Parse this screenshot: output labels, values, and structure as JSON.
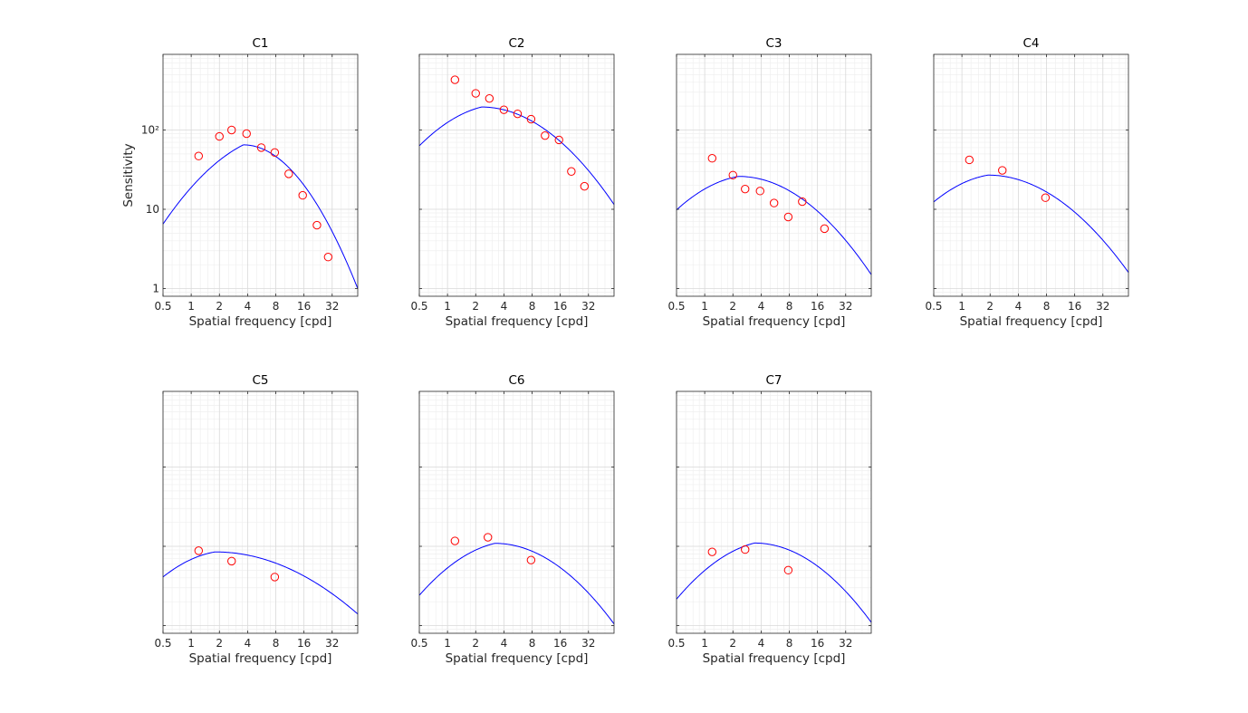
{
  "figure": {
    "xlabel": "Spatial frequency [cpd]",
    "ylabel": "Sensitivity",
    "colors": {
      "fit": "#0000ff",
      "data": "#ff0000",
      "grid": "#d9d9d9",
      "axis": "#262626"
    }
  },
  "chart_data": [
    {
      "type": "scatter",
      "title": "C1",
      "xscale": "log2",
      "yscale": "log10",
      "xlim": [
        0.5,
        60
      ],
      "ylim": [
        0.8,
        900
      ],
      "xticks": [
        0.5,
        1,
        2,
        4,
        8,
        16,
        32
      ],
      "xtick_labels": [
        "0.5",
        "1",
        "2",
        "4",
        "8",
        "16",
        "32"
      ],
      "yticks": [
        1,
        10,
        100
      ],
      "ytick_labels": [
        "1",
        "10",
        "10²"
      ],
      "xlabel": "Spatial frequency [cpd]",
      "ylabel": "Sensitivity",
      "grid": true,
      "fit": {
        "peak_x": 3.6,
        "peak_y": 65,
        "low_slope": 0.6,
        "drop_at_60": 1.0
      },
      "points": [
        [
          1.2,
          47
        ],
        [
          2,
          83
        ],
        [
          2.7,
          100
        ],
        [
          3.9,
          90
        ],
        [
          5.6,
          60
        ],
        [
          7.8,
          52
        ],
        [
          11,
          28
        ],
        [
          15.5,
          15
        ],
        [
          22,
          6.3
        ],
        [
          29,
          2.5
        ]
      ]
    },
    {
      "type": "scatter",
      "title": "C2",
      "xscale": "log2",
      "yscale": "log10",
      "xlim": [
        0.5,
        60
      ],
      "ylim": [
        0.8,
        900
      ],
      "xticks": [
        0.5,
        1,
        2,
        4,
        8,
        16,
        32
      ],
      "xtick_labels": [
        "0.5",
        "1",
        "2",
        "4",
        "8",
        "16",
        "32"
      ],
      "yticks": [
        1,
        10,
        100
      ],
      "ytick_labels": [
        "",
        "",
        ""
      ],
      "xlabel": "Spatial frequency [cpd]",
      "grid": true,
      "fit": {
        "peak_x": 2.3,
        "peak_y": 195,
        "low_slope": 0.3,
        "drop_at_60": 11.5
      },
      "points": [
        [
          1.2,
          430
        ],
        [
          2,
          290
        ],
        [
          2.8,
          250
        ],
        [
          4,
          180
        ],
        [
          5.6,
          160
        ],
        [
          7.8,
          137
        ],
        [
          11,
          85
        ],
        [
          15.5,
          75
        ],
        [
          21,
          30
        ],
        [
          29,
          19.5
        ]
      ]
    },
    {
      "type": "scatter",
      "title": "C3",
      "xscale": "log2",
      "yscale": "log10",
      "xlim": [
        0.5,
        60
      ],
      "ylim": [
        0.8,
        900
      ],
      "xticks": [
        0.5,
        1,
        2,
        4,
        8,
        16,
        32
      ],
      "xtick_labels": [
        "0.5",
        "1",
        "2",
        "4",
        "8",
        "16",
        "32"
      ],
      "yticks": [
        1,
        10,
        100
      ],
      "ytick_labels": [
        "",
        "",
        ""
      ],
      "xlabel": "Spatial frequency [cpd]",
      "grid": true,
      "fit": {
        "peak_x": 2.3,
        "peak_y": 26,
        "low_slope": 0.2,
        "drop_at_60": 1.5
      },
      "points": [
        [
          1.2,
          44
        ],
        [
          2,
          27
        ],
        [
          2.7,
          18
        ],
        [
          3.9,
          17
        ],
        [
          5.5,
          12
        ],
        [
          7.8,
          8
        ],
        [
          11,
          12.5
        ],
        [
          19,
          5.7
        ]
      ]
    },
    {
      "type": "scatter",
      "title": "C4",
      "xscale": "log2",
      "yscale": "log10",
      "xlim": [
        0.5,
        60
      ],
      "ylim": [
        0.8,
        900
      ],
      "xticks": [
        0.5,
        1,
        2,
        4,
        8,
        16,
        32
      ],
      "xtick_labels": [
        "0.5",
        "1",
        "2",
        "4",
        "8",
        "16",
        "32"
      ],
      "yticks": [
        1,
        10,
        100
      ],
      "ytick_labels": [
        "",
        "",
        ""
      ],
      "xlabel": "Spatial frequency [cpd]",
      "grid": true,
      "fit": {
        "peak_x": 1.9,
        "peak_y": 27,
        "low_slope": 0.2,
        "drop_at_60": 1.6
      },
      "points": [
        [
          1.2,
          42
        ],
        [
          2.7,
          31
        ],
        [
          7.8,
          14
        ]
      ]
    },
    {
      "type": "scatter",
      "title": "C5",
      "xscale": "log2",
      "yscale": "log10",
      "xlim": [
        0.5,
        60
      ],
      "ylim": [
        0.8,
        900
      ],
      "xticks": [
        0.5,
        1,
        2,
        4,
        8,
        16,
        32
      ],
      "xtick_labels": [
        "0.5",
        "1",
        "2",
        "4",
        "8",
        "16",
        "32"
      ],
      "yticks": [
        1,
        10,
        100
      ],
      "ytick_labels": [
        "",
        "",
        ""
      ],
      "xlabel": "Spatial frequency [cpd]",
      "grid": true,
      "fit": {
        "peak_x": 1.8,
        "peak_y": 8.5,
        "low_slope": 0.2,
        "drop_at_60": 1.4
      },
      "points": [
        [
          1.2,
          8.8
        ],
        [
          2.7,
          6.5
        ],
        [
          7.8,
          4.1
        ]
      ]
    },
    {
      "type": "scatter",
      "title": "C6",
      "xscale": "log2",
      "yscale": "log10",
      "xlim": [
        0.5,
        60
      ],
      "ylim": [
        0.8,
        900
      ],
      "xticks": [
        0.5,
        1,
        2,
        4,
        8,
        16,
        32
      ],
      "xtick_labels": [
        "0.5",
        "1",
        "2",
        "4",
        "8",
        "16",
        "32"
      ],
      "yticks": [
        1,
        10,
        100
      ],
      "ytick_labels": [
        "",
        "",
        ""
      ],
      "xlabel": "Spatial frequency [cpd]",
      "grid": true,
      "fit": {
        "peak_x": 3.2,
        "peak_y": 10.9,
        "low_slope": 0.28,
        "drop_at_60": 1.05
      },
      "points": [
        [
          1.2,
          11.7
        ],
        [
          2.7,
          13
        ],
        [
          7.8,
          6.7
        ]
      ]
    },
    {
      "type": "scatter",
      "title": "C7",
      "xscale": "log2",
      "yscale": "log10",
      "xlim": [
        0.5,
        60
      ],
      "ylim": [
        0.8,
        900
      ],
      "xticks": [
        0.5,
        1,
        2,
        4,
        8,
        16,
        32
      ],
      "xtick_labels": [
        "0.5",
        "1",
        "2",
        "4",
        "8",
        "16",
        "32"
      ],
      "yticks": [
        1,
        10,
        100
      ],
      "ytick_labels": [
        "",
        "",
        ""
      ],
      "xlabel": "Spatial frequency [cpd]",
      "grid": true,
      "fit": {
        "peak_x": 3.4,
        "peak_y": 11,
        "low_slope": 0.3,
        "drop_at_60": 1.1
      },
      "points": [
        [
          1.2,
          8.5
        ],
        [
          2.7,
          9.1
        ],
        [
          7.8,
          5
        ]
      ]
    }
  ]
}
